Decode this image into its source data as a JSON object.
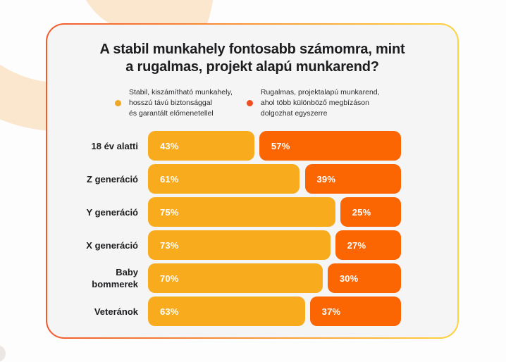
{
  "card": {
    "title_lines": [
      "A stabil munkahely fontosabb számomra, mint",
      "a rugalmas, projekt alapú munkarend?"
    ],
    "border_gradient": [
      "#F15B2E",
      "#FFD23F"
    ],
    "background": "#F5F5F6",
    "legend": [
      {
        "color": "#F0A724",
        "lines": [
          "Stabil, kiszámítható munkahely,",
          "hosszú távú biztonsággal",
          "és garantált előmenetellel"
        ]
      },
      {
        "color": "#EF4E23",
        "lines": [
          "Rugalmas, projektalapú munkarend,",
          "ahol több különböző megbízáson",
          "dolgozhat egyszerre"
        ]
      }
    ]
  },
  "chart_data": {
    "type": "bar",
    "orientation": "horizontal",
    "stacked_100_percent": true,
    "title": "A stabil munkahely fontosabb számomra, mint a rugalmas, projekt alapú munkarend?",
    "categories": [
      "18 év alatti",
      "Z generáció",
      "Y generáció",
      "X generáció",
      "Baby bommerek",
      "Veteránok"
    ],
    "series": [
      {
        "name": "Stabil, kiszámítható munkahely, hosszú távú biztonsággal és garantált előmenetellel",
        "color": "#F7AB1D",
        "values": [
          43,
          61,
          75,
          73,
          70,
          63
        ],
        "labels": [
          "43%",
          "61%",
          "75%",
          "73%",
          "70%",
          "63%"
        ]
      },
      {
        "name": "Rugalmas, projektalapú munkarend, ahol több különböző megbízáson dolgozhat egyszerre",
        "color": "#FB6502",
        "values": [
          57,
          39,
          25,
          27,
          30,
          37
        ],
        "labels": [
          "57%",
          "39%",
          "25%",
          "27%",
          "30%",
          "37%"
        ]
      }
    ],
    "value_label_position": "inside-left",
    "legend_position": "top",
    "grid": false
  }
}
